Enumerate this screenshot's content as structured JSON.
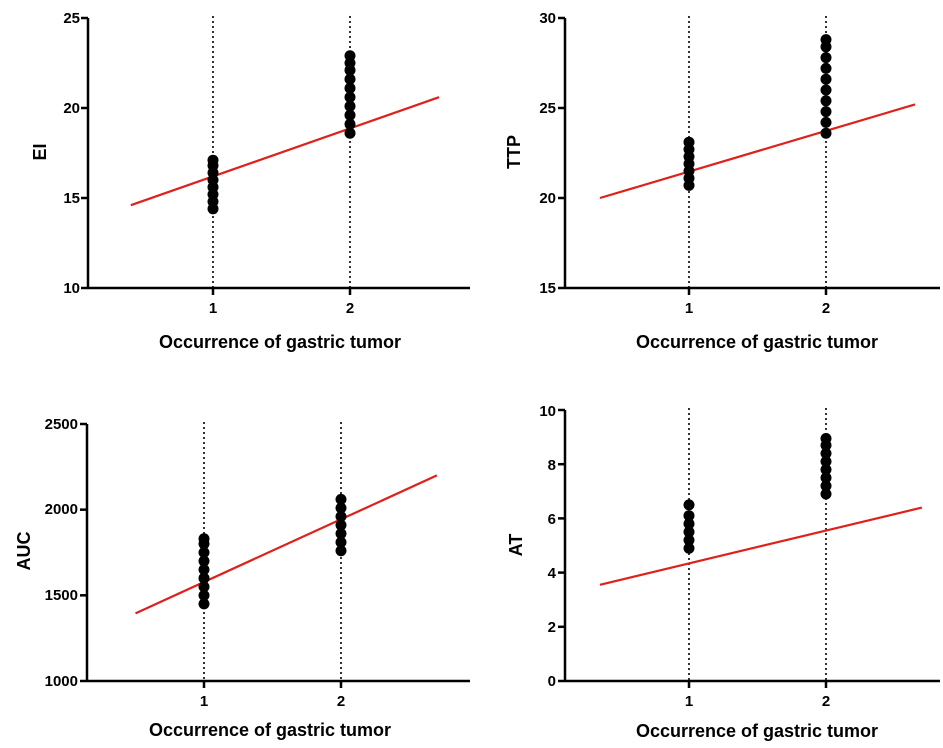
{
  "chart_data": [
    {
      "type": "scatter",
      "xlabel": "Occurrence of gastric tumor",
      "ylabel": "EI",
      "ylim": [
        10,
        25
      ],
      "yticks": [
        "10",
        "15",
        "20",
        "25"
      ],
      "xticks": [
        "1",
        "2"
      ],
      "x_categories": [
        1,
        2
      ],
      "series": [
        {
          "points": [
            {
              "x": 1,
              "y": 14.4
            },
            {
              "x": 1,
              "y": 14.8
            },
            {
              "x": 1,
              "y": 15.2
            },
            {
              "x": 1,
              "y": 15.6
            },
            {
              "x": 1,
              "y": 16.0
            },
            {
              "x": 1,
              "y": 16.4
            },
            {
              "x": 1,
              "y": 16.8
            },
            {
              "x": 1,
              "y": 17.1
            },
            {
              "x": 2,
              "y": 18.6
            },
            {
              "x": 2,
              "y": 19.1
            },
            {
              "x": 2,
              "y": 19.6
            },
            {
              "x": 2,
              "y": 20.1
            },
            {
              "x": 2,
              "y": 20.6
            },
            {
              "x": 2,
              "y": 21.1
            },
            {
              "x": 2,
              "y": 21.6
            },
            {
              "x": 2,
              "y": 22.1
            },
            {
              "x": 2,
              "y": 22.5
            },
            {
              "x": 2,
              "y": 22.9
            }
          ]
        }
      ],
      "regression_line": {
        "color": "#e0201b",
        "x": [
          0.4,
          2.65
        ],
        "y": [
          14.6,
          20.6
        ]
      },
      "reference_lines": [
        1,
        2
      ],
      "marker_color": "#000000"
    },
    {
      "type": "scatter",
      "xlabel": "Occurrence of gastric tumor",
      "ylabel": "TTP",
      "ylim": [
        15,
        30
      ],
      "yticks": [
        "15",
        "20",
        "25",
        "30"
      ],
      "xticks": [
        "1",
        "2"
      ],
      "x_categories": [
        1,
        2
      ],
      "series": [
        {
          "points": [
            {
              "x": 1,
              "y": 20.7
            },
            {
              "x": 1,
              "y": 21.1
            },
            {
              "x": 1,
              "y": 21.5
            },
            {
              "x": 1,
              "y": 21.9
            },
            {
              "x": 1,
              "y": 22.3
            },
            {
              "x": 1,
              "y": 22.7
            },
            {
              "x": 1,
              "y": 23.1
            },
            {
              "x": 2,
              "y": 23.6
            },
            {
              "x": 2,
              "y": 24.2
            },
            {
              "x": 2,
              "y": 24.8
            },
            {
              "x": 2,
              "y": 25.4
            },
            {
              "x": 2,
              "y": 26.0
            },
            {
              "x": 2,
              "y": 26.6
            },
            {
              "x": 2,
              "y": 27.2
            },
            {
              "x": 2,
              "y": 27.8
            },
            {
              "x": 2,
              "y": 28.4
            },
            {
              "x": 2,
              "y": 28.8
            }
          ]
        }
      ],
      "regression_line": {
        "color": "#e0201b",
        "x": [
          0.35,
          2.65
        ],
        "y": [
          20.0,
          25.2
        ]
      },
      "reference_lines": [
        1,
        2
      ],
      "marker_color": "#000000"
    },
    {
      "type": "scatter",
      "xlabel": "Occurrence of gastric tumor",
      "ylabel": "AUC",
      "ylim": [
        1000,
        2500
      ],
      "yticks": [
        "1000",
        "1500",
        "2000",
        "2500"
      ],
      "xticks": [
        "1",
        "2"
      ],
      "x_categories": [
        1,
        2
      ],
      "series": [
        {
          "points": [
            {
              "x": 1,
              "y": 1450
            },
            {
              "x": 1,
              "y": 1500
            },
            {
              "x": 1,
              "y": 1550
            },
            {
              "x": 1,
              "y": 1600
            },
            {
              "x": 1,
              "y": 1650
            },
            {
              "x": 1,
              "y": 1700
            },
            {
              "x": 1,
              "y": 1750
            },
            {
              "x": 1,
              "y": 1800
            },
            {
              "x": 1,
              "y": 1830
            },
            {
              "x": 2,
              "y": 1760
            },
            {
              "x": 2,
              "y": 1810
            },
            {
              "x": 2,
              "y": 1860
            },
            {
              "x": 2,
              "y": 1910
            },
            {
              "x": 2,
              "y": 1960
            },
            {
              "x": 2,
              "y": 2010
            },
            {
              "x": 2,
              "y": 2060
            }
          ]
        }
      ],
      "regression_line": {
        "color": "#e0201b",
        "x": [
          0.5,
          2.7
        ],
        "y": [
          1395,
          2200
        ]
      },
      "reference_lines": [
        1,
        2
      ],
      "marker_color": "#000000"
    },
    {
      "type": "scatter",
      "xlabel": "Occurrence of gastric tumor",
      "ylabel": "AT",
      "ylim": [
        0,
        10
      ],
      "yticks": [
        "0",
        "2",
        "4",
        "6",
        "8",
        "10"
      ],
      "xticks": [
        "1",
        "2"
      ],
      "x_categories": [
        1,
        2
      ],
      "series": [
        {
          "points": [
            {
              "x": 1,
              "y": 4.9
            },
            {
              "x": 1,
              "y": 5.2
            },
            {
              "x": 1,
              "y": 5.5
            },
            {
              "x": 1,
              "y": 5.8
            },
            {
              "x": 1,
              "y": 6.1
            },
            {
              "x": 1,
              "y": 6.5
            },
            {
              "x": 2,
              "y": 6.9
            },
            {
              "x": 2,
              "y": 7.2
            },
            {
              "x": 2,
              "y": 7.5
            },
            {
              "x": 2,
              "y": 7.8
            },
            {
              "x": 2,
              "y": 8.1
            },
            {
              "x": 2,
              "y": 8.4
            },
            {
              "x": 2,
              "y": 8.7
            },
            {
              "x": 2,
              "y": 8.95
            }
          ]
        }
      ],
      "regression_line": {
        "color": "#e0201b",
        "x": [
          0.35,
          2.7
        ],
        "y": [
          3.55,
          6.4
        ]
      },
      "reference_lines": [
        1,
        2
      ],
      "marker_color": "#000000"
    }
  ]
}
